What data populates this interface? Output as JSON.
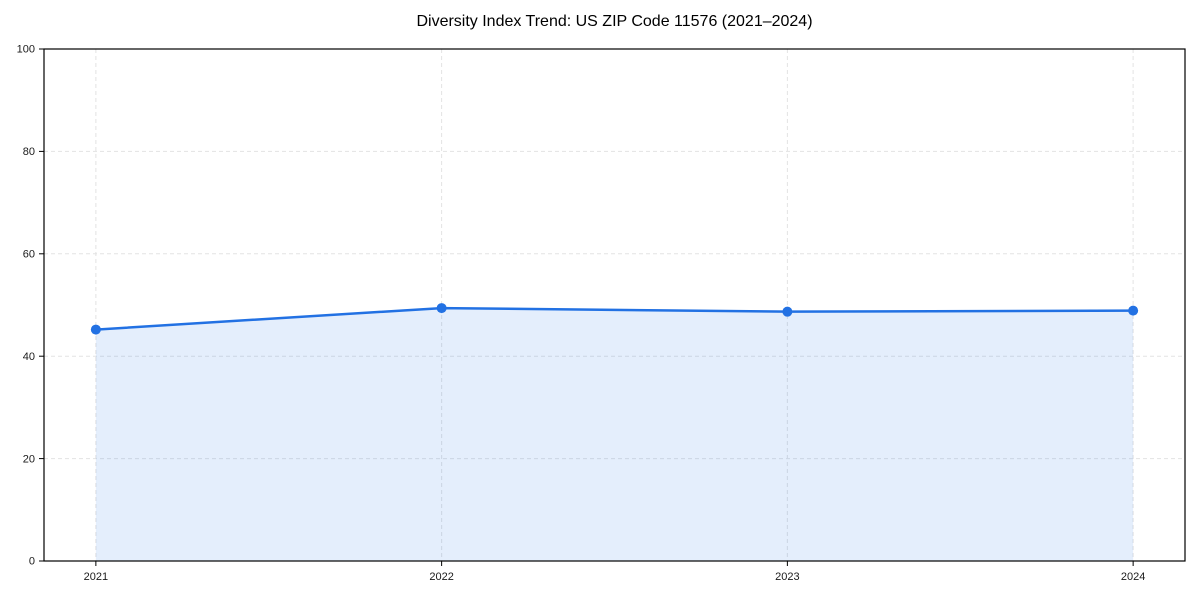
{
  "chart_data": {
    "type": "line",
    "title": "Diversity Index Trend: US ZIP Code 11576 (2021–2024)",
    "x": [
      2021,
      2022,
      2023,
      2024
    ],
    "xticks": [
      "2021",
      "2022",
      "2023",
      "2024"
    ],
    "yticks": [
      0,
      20,
      40,
      60,
      80,
      100
    ],
    "series": [
      {
        "name": "Diversity Index",
        "values": [
          45.2,
          49.4,
          48.7,
          48.9
        ]
      }
    ],
    "xlabel": "",
    "ylabel": "",
    "xlim": [
      2020.85,
      2024.15
    ],
    "ylim": [
      0,
      100
    ],
    "grid": true,
    "legend_position": "none",
    "area_fill": true,
    "marker": "circle",
    "colors": {
      "line": "#2271e3",
      "marker": "#2271e3",
      "fill": "#2271e3",
      "fill_opacity": "0.12",
      "grid": "#e3e3e3",
      "axis": "#000000",
      "tick_text": "#1a1a1a",
      "background": "#ffffff"
    }
  }
}
